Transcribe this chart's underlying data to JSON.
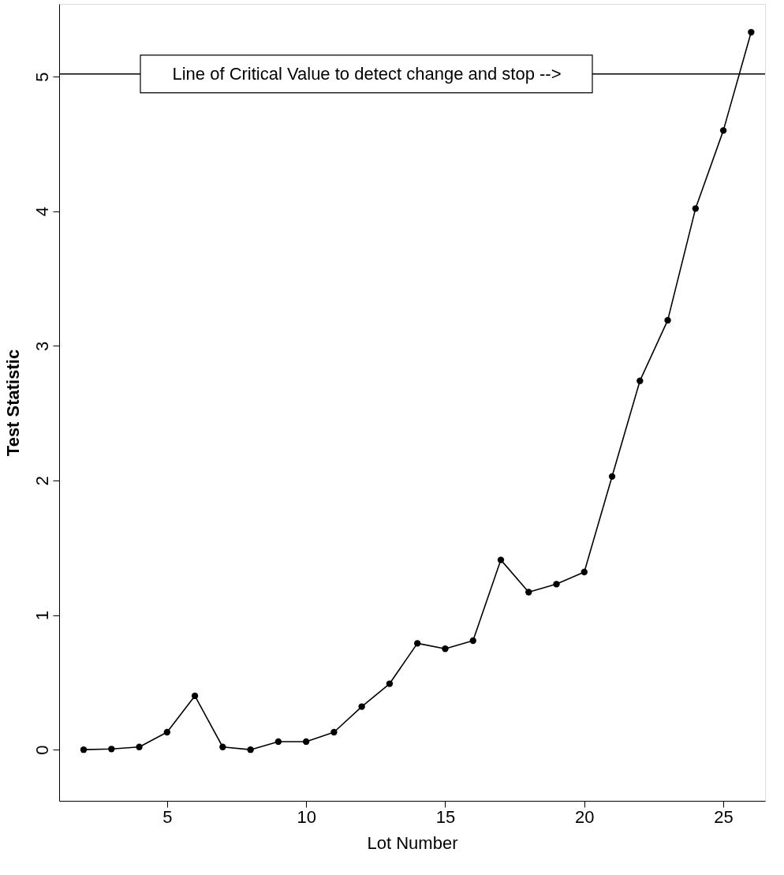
{
  "chart_data": {
    "type": "line",
    "xlabel": "Lot Number",
    "ylabel": "Test Statistic",
    "x": [
      2,
      3,
      4,
      5,
      6,
      7,
      8,
      9,
      10,
      11,
      12,
      13,
      14,
      15,
      16,
      17,
      18,
      19,
      20,
      21,
      22,
      23,
      24,
      25,
      26
    ],
    "series": [
      {
        "color": "#000000",
        "values": [
          0,
          0.005,
          0.02,
          0.13,
          0.4,
          0.02,
          0,
          0.06,
          0.06,
          0.13,
          0.32,
          0.49,
          0.79,
          0.75,
          0.81,
          1.41,
          1.17,
          1.23,
          1.32,
          2.03,
          2.74,
          3.19,
          4.02,
          4.6,
          5.33
        ]
      }
    ],
    "xlim": [
      1.12,
      26.5
    ],
    "xticks": [
      5,
      10,
      15,
      20,
      25
    ],
    "ylim": [
      -0.38,
      5.54
    ],
    "yticks": [
      0,
      1,
      2,
      3,
      4,
      5
    ],
    "ref_lines": [
      {
        "axis": "y",
        "value": 5.02,
        "label": "Line of Critical Value to detect change and stop -->",
        "color": "#000000"
      }
    ],
    "marker": "circle",
    "line_style": "solid",
    "grid": false
  }
}
